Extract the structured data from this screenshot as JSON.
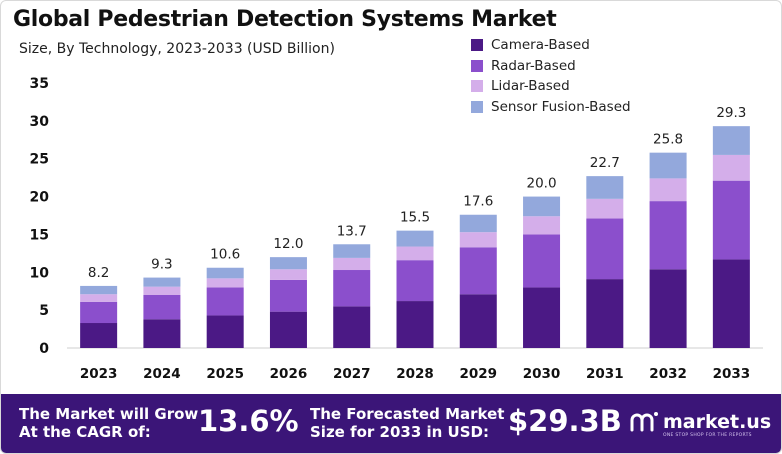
{
  "title": "Global Pedestrian Detection Systems Market",
  "subtitle": "Size, By Technology, 2023-2033 (USD Billion)",
  "colors": {
    "camera": "#4b1985",
    "radar": "#8b4fcc",
    "lidar": "#d4aeea",
    "fusion": "#93a8dc",
    "banner": "#3b1578"
  },
  "chart_data": {
    "type": "bar",
    "stacked": true,
    "title": "Global Pedestrian Detection Systems Market",
    "subtitle": "Size, By Technology, 2023-2033 (USD Billion)",
    "categories": [
      "2023",
      "2024",
      "2025",
      "2026",
      "2027",
      "2028",
      "2029",
      "2030",
      "2031",
      "2032",
      "2033"
    ],
    "series": [
      {
        "name": "Camera-Based",
        "values": [
          3.3,
          3.8,
          4.3,
          4.8,
          5.5,
          6.2,
          7.1,
          8.0,
          9.1,
          10.4,
          11.7
        ]
      },
      {
        "name": "Radar-Based",
        "values": [
          2.8,
          3.2,
          3.7,
          4.2,
          4.8,
          5.4,
          6.2,
          7.0,
          8.0,
          9.0,
          10.4
        ]
      },
      {
        "name": "Lidar-Based",
        "values": [
          1.0,
          1.1,
          1.2,
          1.4,
          1.6,
          1.8,
          2.0,
          2.4,
          2.6,
          3.0,
          3.4
        ]
      },
      {
        "name": "Sensor Fusion-Based",
        "values": [
          1.1,
          1.2,
          1.4,
          1.6,
          1.8,
          2.1,
          2.3,
          2.6,
          3.0,
          3.4,
          3.8
        ]
      }
    ],
    "totals": [
      "8.2",
      "9.3",
      "10.6",
      "12.0",
      "13.7",
      "15.5",
      "17.6",
      "20.0",
      "22.7",
      "25.8",
      "29.3"
    ],
    "yticks": [
      "0",
      "5",
      "10",
      "15",
      "20",
      "25",
      "30",
      "35"
    ],
    "ylim": [
      0,
      35
    ],
    "xlabel": "",
    "ylabel": "",
    "legend_position": "top-right"
  },
  "banner": {
    "cagr_label_line1": "The Market will Grow",
    "cagr_label_line2": "At the CAGR of:",
    "cagr_value": "13.6%",
    "forecast_label_line1": "The Forecasted Market",
    "forecast_label_line2": "Size for 2033 in USD:",
    "forecast_value": "$29.3B",
    "logo_text": "market.us",
    "logo_tagline": "ONE STOP SHOP FOR THE REPORTS"
  }
}
